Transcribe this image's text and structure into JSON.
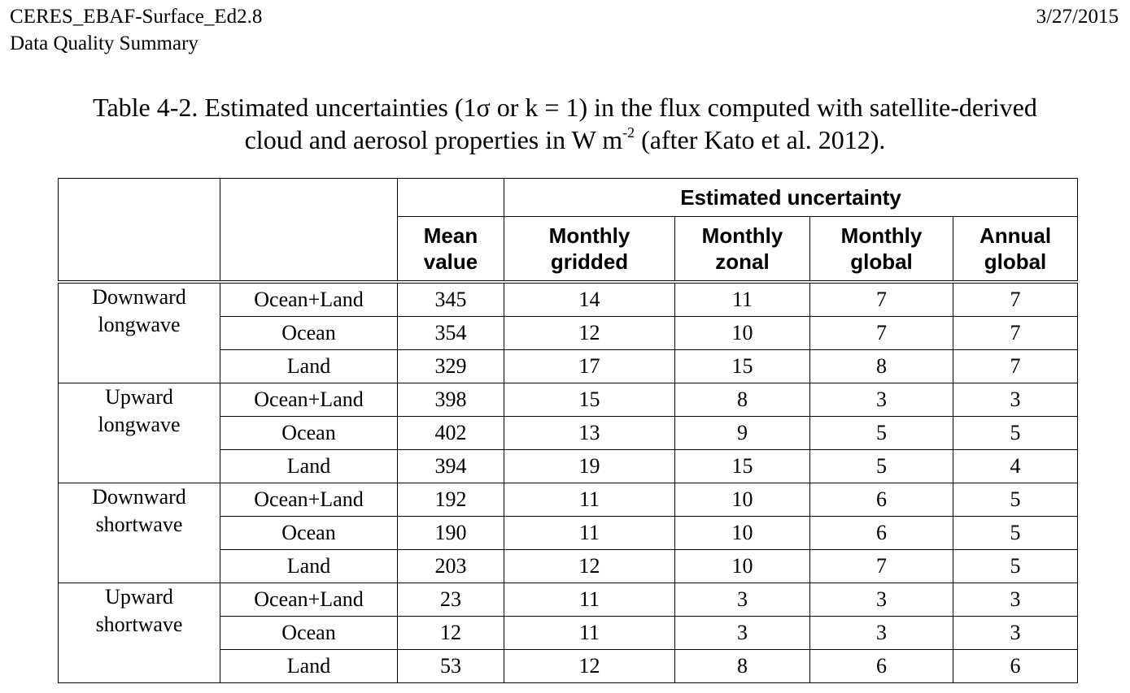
{
  "header": {
    "doc_title": "CERES_EBAF-Surface_Ed2.8",
    "doc_subtitle": "Data Quality Summary",
    "date": "3/27/2015"
  },
  "caption": {
    "line1": "Table 4-2.  Estimated uncertainties (1σ or k = 1) in the flux computed with satellite-derived",
    "line2_pre": "cloud and aerosol properties in W m",
    "line2_sup": "-2",
    "line2_post": " (after Kato et al. 2012)."
  },
  "table": {
    "group_header": "Estimated uncertainty",
    "columns": [
      {
        "l1": "Mean",
        "l2": "value"
      },
      {
        "l1": "Monthly",
        "l2": "gridded"
      },
      {
        "l1": "Monthly",
        "l2": "zonal"
      },
      {
        "l1": "Monthly",
        "l2": "global"
      },
      {
        "l1": "Annual",
        "l2": "global"
      }
    ],
    "groups": [
      {
        "l1": "Downward",
        "l2": "longwave",
        "rows": [
          {
            "region": "Ocean+Land",
            "v": [
              "345",
              "14",
              "11",
              "7",
              "7"
            ]
          },
          {
            "region": "Ocean",
            "v": [
              "354",
              "12",
              "10",
              "7",
              "7"
            ]
          },
          {
            "region": "Land",
            "v": [
              "329",
              "17",
              "15",
              "8",
              "7"
            ]
          }
        ]
      },
      {
        "l1": "Upward",
        "l2": "longwave",
        "rows": [
          {
            "region": "Ocean+Land",
            "v": [
              "398",
              "15",
              "8",
              "3",
              "3"
            ]
          },
          {
            "region": "Ocean",
            "v": [
              "402",
              "13",
              "9",
              "5",
              "5"
            ]
          },
          {
            "region": "Land",
            "v": [
              "394",
              "19",
              "15",
              "5",
              "4"
            ]
          }
        ]
      },
      {
        "l1": "Downward",
        "l2": "shortwave",
        "rows": [
          {
            "region": "Ocean+Land",
            "v": [
              "192",
              "11",
              "10",
              "6",
              "5"
            ]
          },
          {
            "region": "Ocean",
            "v": [
              "190",
              "11",
              "10",
              "6",
              "5"
            ]
          },
          {
            "region": "Land",
            "v": [
              "203",
              "12",
              "10",
              "7",
              "5"
            ]
          }
        ]
      },
      {
        "l1": "Upward",
        "l2": "shortwave",
        "rows": [
          {
            "region": "Ocean+Land",
            "v": [
              "23",
              "11",
              "3",
              "3",
              "3"
            ]
          },
          {
            "region": "Ocean",
            "v": [
              "12",
              "11",
              "3",
              "3",
              "3"
            ]
          },
          {
            "region": "Land",
            "v": [
              "53",
              "12",
              "8",
              "6",
              "6"
            ]
          }
        ]
      }
    ]
  }
}
